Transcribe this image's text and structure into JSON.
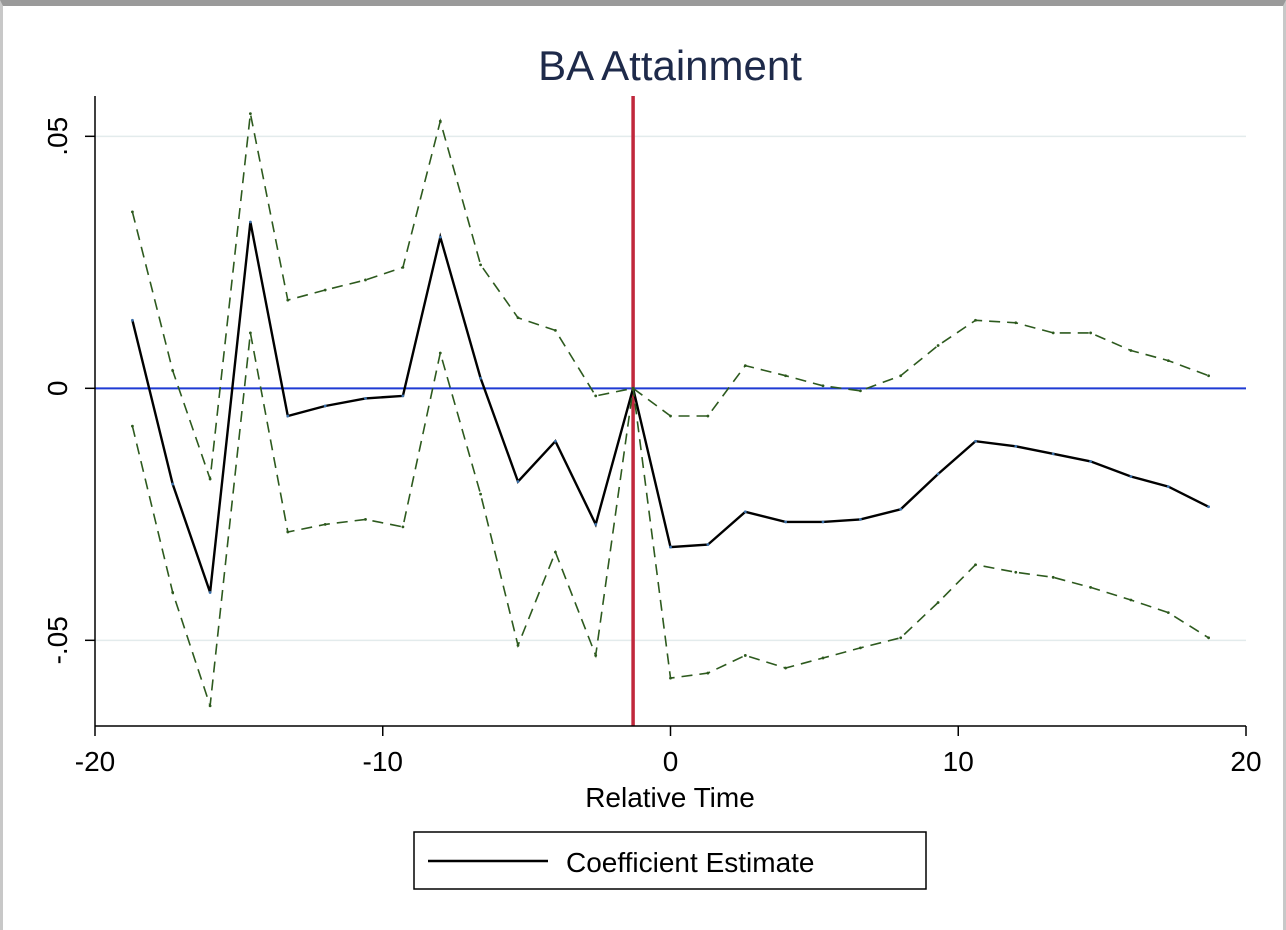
{
  "chart_data": {
    "type": "line",
    "title": "BA Attainment",
    "xlabel": "Relative Time",
    "ylabel": "",
    "xlim": [
      -20,
      20
    ],
    "ylim": [
      -0.067,
      0.058
    ],
    "xticks": [
      {
        "value": -20,
        "label": "-20"
      },
      {
        "value": -10,
        "label": "-10"
      },
      {
        "value": 0,
        "label": "0"
      },
      {
        "value": 10,
        "label": "10"
      },
      {
        "value": 20,
        "label": "20"
      }
    ],
    "yticks": [
      {
        "value": 0.05,
        "label": ".05"
      },
      {
        "value": 0,
        "label": "0"
      },
      {
        "value": -0.05,
        "label": "-.05"
      }
    ],
    "grid": true,
    "reference_lines": {
      "horizontal": {
        "value": 0,
        "color": "#1f3bd4"
      },
      "vertical": {
        "value": -1.3,
        "color": "#c0283c"
      }
    },
    "x": [
      -18.7,
      -17.3,
      -16.0,
      -14.6,
      -13.3,
      -12.0,
      -10.6,
      -9.3,
      -8.0,
      -6.6,
      -5.3,
      -4.0,
      -2.6,
      -1.3,
      0.0,
      1.3,
      2.6,
      4.0,
      5.3,
      6.6,
      8.0,
      9.3,
      10.6,
      12.0,
      13.3,
      14.6,
      16.0,
      17.3,
      18.7
    ],
    "series": [
      {
        "name": "Coefficient Estimate",
        "style": "solid",
        "color": "#000000",
        "values": [
          0.0135,
          -0.019,
          -0.0405,
          0.033,
          -0.0055,
          -0.0035,
          -0.002,
          -0.0015,
          0.03,
          0.002,
          -0.0185,
          -0.0105,
          -0.027,
          0.0,
          -0.0315,
          -0.031,
          -0.0245,
          -0.0265,
          -0.0265,
          -0.026,
          -0.024,
          -0.017,
          -0.0105,
          -0.0115,
          -0.013,
          -0.0145,
          -0.0175,
          -0.0195,
          -0.0235
        ]
      },
      {
        "style": "dashed",
        "color": "#2d5a1e",
        "values": [
          0.035,
          0.0035,
          -0.018,
          0.0545,
          0.0175,
          0.0195,
          0.0215,
          0.024,
          0.053,
          0.0245,
          0.014,
          0.0115,
          -0.0015,
          0.0,
          -0.0055,
          -0.0055,
          0.0045,
          0.0025,
          0.0005,
          -0.0005,
          0.0025,
          0.0085,
          0.0135,
          0.013,
          0.011,
          0.011,
          0.0075,
          0.0055,
          0.0025
        ]
      },
      {
        "style": "dashed",
        "color": "#2d5a1e",
        "values": [
          -0.0075,
          -0.0405,
          -0.063,
          0.011,
          -0.0285,
          -0.027,
          -0.026,
          -0.0275,
          0.007,
          -0.021,
          -0.051,
          -0.0325,
          -0.053,
          0.0,
          -0.0575,
          -0.0565,
          -0.053,
          -0.0555,
          -0.0535,
          -0.0515,
          -0.0495,
          -0.0425,
          -0.035,
          -0.0365,
          -0.0375,
          -0.0395,
          -0.042,
          -0.0445,
          -0.0495
        ]
      }
    ],
    "legend": {
      "position": "bottom",
      "entries": [
        {
          "label": "Coefficient Estimate",
          "color": "#000000"
        }
      ]
    }
  }
}
